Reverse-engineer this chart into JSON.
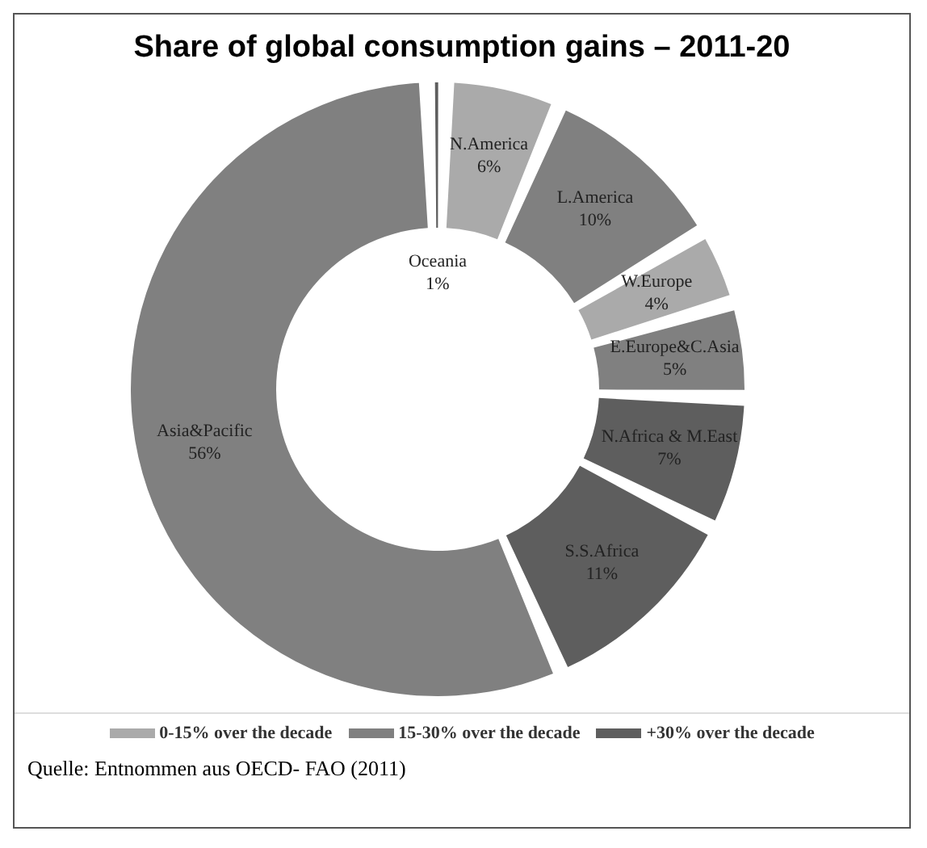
{
  "chart_data": {
    "type": "donut",
    "title": "Share of global consumption gains – 2011-20",
    "categories": [
      "Oceania",
      "N.America",
      "L.America",
      "W.Europe",
      "E.Europe&C.Asia",
      "N.Africa & M.East",
      "S.S.Africa",
      "Asia&Pacific"
    ],
    "values": [
      1,
      6,
      10,
      4,
      5,
      7,
      11,
      56
    ],
    "colors": [
      "#5e5e5e",
      "#aaaaaa",
      "#808080",
      "#aaaaaa",
      "#808080",
      "#5e5e5e",
      "#5e5e5e",
      "#808080"
    ],
    "value_labels": [
      "1%",
      "6%",
      "10%",
      "4%",
      "5%",
      "7%",
      "11%",
      "56%"
    ],
    "annotations": [
      "0-15% over the decade",
      "15-30% over the decade",
      "+30% over the decade",
      "Quelle: Entnommen aus OECD- FAO (2011)"
    ]
  }
}
